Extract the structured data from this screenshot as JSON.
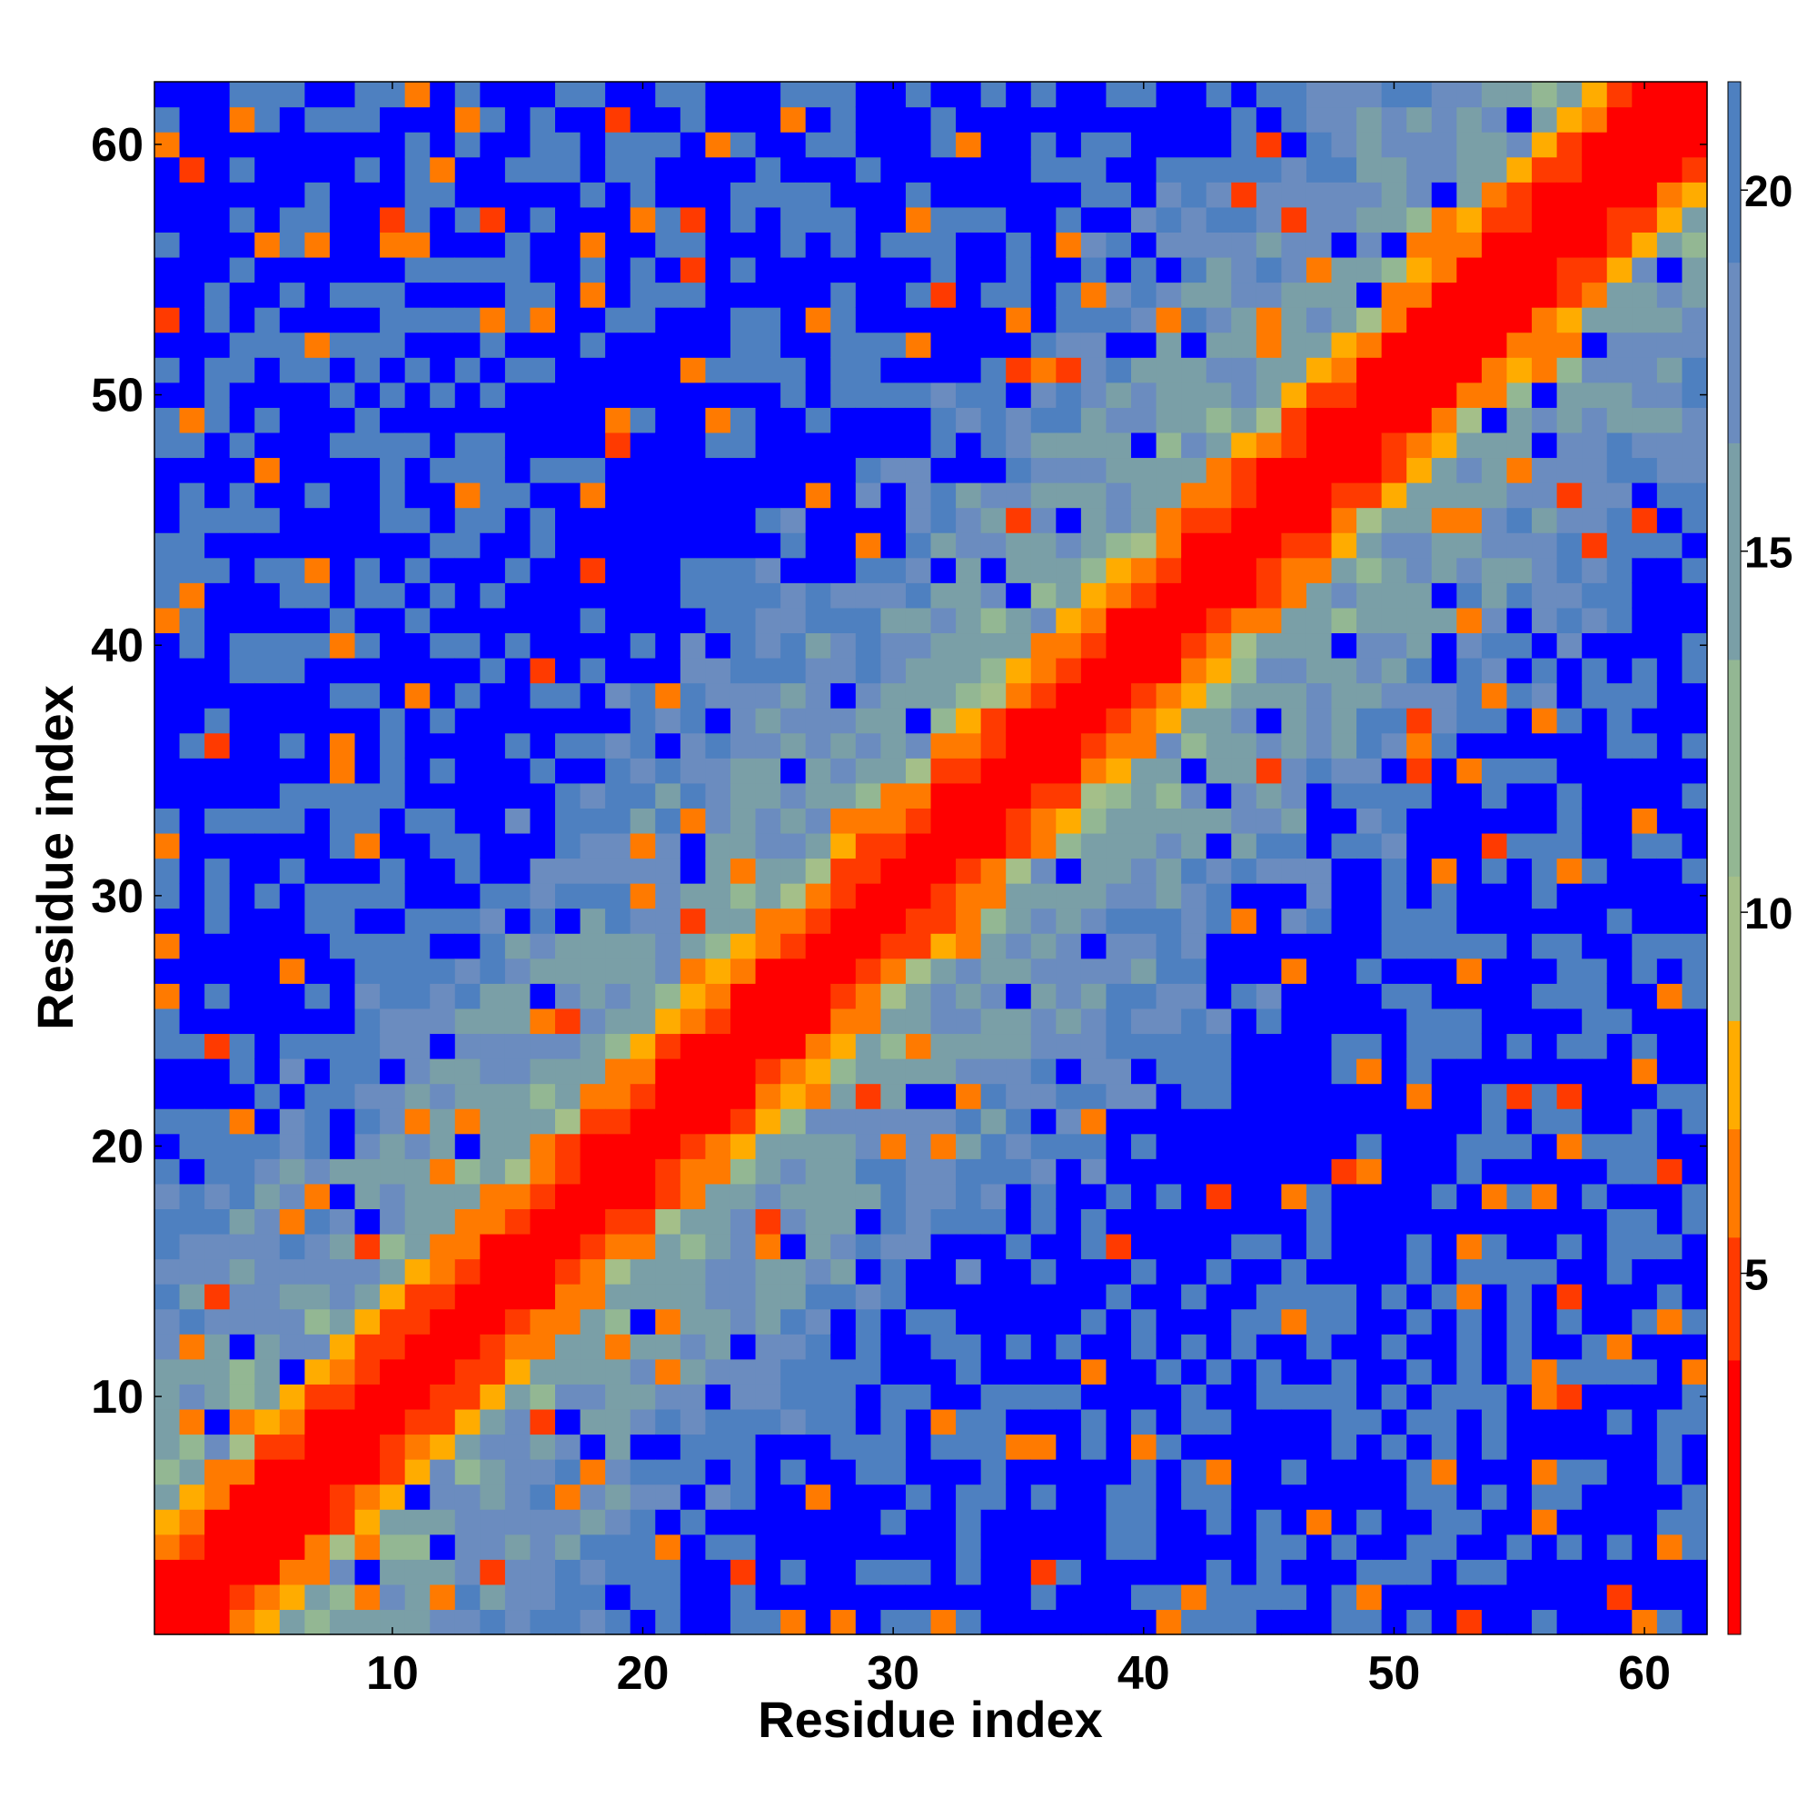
{
  "chart_data": {
    "type": "heatmap",
    "title": "",
    "xlabel": "Residue index",
    "ylabel": "Residue index",
    "n_residues": 62,
    "x_range": [
      1,
      62
    ],
    "y_range": [
      1,
      62
    ],
    "x_ticks": [
      10,
      20,
      30,
      40,
      50,
      60
    ],
    "y_ticks": [
      10,
      20,
      30,
      40,
      50,
      60
    ],
    "colorbar": {
      "ticks": [
        5,
        10,
        15,
        20
      ],
      "range": [
        0,
        21.5
      ],
      "bins": [
        {
          "max": 3.8,
          "color": "#ff0000"
        },
        {
          "max": 5.5,
          "color": "#ff3a00"
        },
        {
          "max": 7.0,
          "color": "#ff7a00"
        },
        {
          "max": 8.5,
          "color": "#ffac00"
        },
        {
          "max": 10.5,
          "color": "#a4bf89"
        },
        {
          "max": 13.5,
          "color": "#93b793"
        },
        {
          "max": 16.5,
          "color": "#7a9fa7"
        },
        {
          "max": 19.0,
          "color": "#6b8cbf"
        },
        {
          "max": 21.5,
          "color": "#4e80c0"
        },
        {
          "max": 99,
          "color": "#0000ff"
        }
      ]
    },
    "values_description_note": "",
    "matrix_rule": "symmetric distance map: d(i,i)=0, near-diagonal small, far residues large",
    "blue_patches": [
      [
        17,
        22,
        43,
        50
      ],
      [
        24,
        28,
        43,
        48
      ],
      [
        18,
        21,
        39,
        42
      ],
      [
        40,
        44,
        16,
        20
      ],
      [
        44,
        48,
        24,
        30
      ],
      [
        44,
        50,
        20,
        24
      ],
      [
        34,
        39,
        14,
        16
      ],
      [
        41,
        45,
        19,
        21
      ],
      [
        1,
        3,
        59,
        62
      ],
      [
        54,
        62,
        1,
        2
      ]
    ]
  }
}
